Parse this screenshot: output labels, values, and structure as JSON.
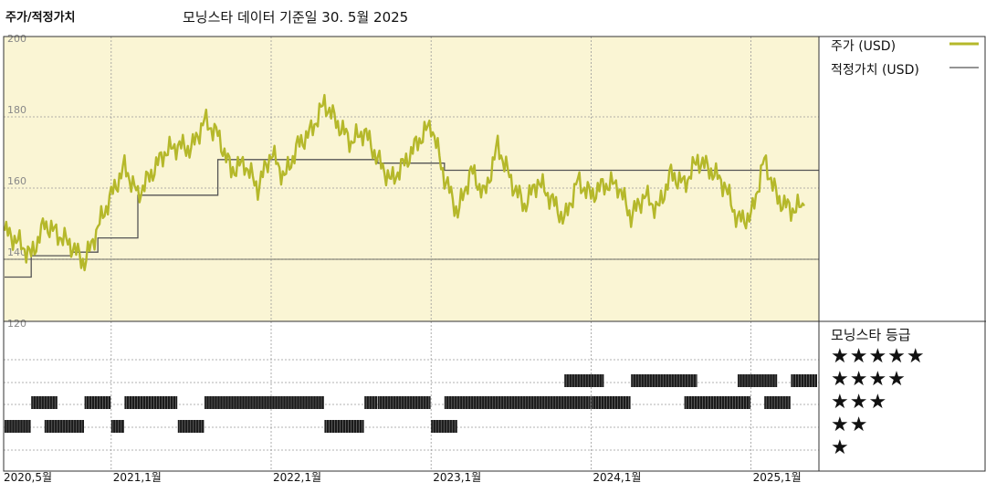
{
  "header": {
    "title": "주가/적정가치",
    "subtitle": "모닝스타 데이터 기준일 30. 5월 2025"
  },
  "legend": {
    "price_label": "주가 (USD)",
    "fair_value_label": "적정가치 (USD)",
    "rating_title": "모닝스타 등급"
  },
  "colors": {
    "price_line": "#b5b82a",
    "fair_value_line": "#555555",
    "panel_bg": "#faf5d4",
    "rating_bar": "#1a1a1a"
  },
  "chart_data": {
    "type": "line",
    "x_tick_labels": [
      "2020,5월",
      "2021,1월",
      "2022,1월",
      "2023,1월",
      "2024,1월",
      "2025,1월"
    ],
    "x_ticks": [
      "2020-05",
      "2021-01",
      "2022-01",
      "2023-01",
      "2024-01",
      "2025-01"
    ],
    "y_tick_labels": [
      "200",
      "180",
      "160",
      "140",
      "120"
    ],
    "ylim": [
      120,
      200
    ],
    "grid": true,
    "legend_position": "right",
    "series": [
      {
        "name": "주가 (USD)",
        "x": [
          "2020-05",
          "2020-06",
          "2020-07",
          "2020-08",
          "2020-09",
          "2020-10",
          "2020-11",
          "2020-12",
          "2021-01",
          "2021-02",
          "2021-03",
          "2021-04",
          "2021-05",
          "2021-06",
          "2021-07",
          "2021-08",
          "2021-09",
          "2021-10",
          "2021-11",
          "2021-12",
          "2022-01",
          "2022-02",
          "2022-03",
          "2022-04",
          "2022-05",
          "2022-06",
          "2022-07",
          "2022-08",
          "2022-09",
          "2022-10",
          "2022-11",
          "2022-12",
          "2023-01",
          "2023-02",
          "2023-03",
          "2023-04",
          "2023-05",
          "2023-06",
          "2023-07",
          "2023-08",
          "2023-09",
          "2023-10",
          "2023-11",
          "2023-12",
          "2024-01",
          "2024-02",
          "2024-03",
          "2024-04",
          "2024-05",
          "2024-06",
          "2024-07",
          "2024-08",
          "2024-09",
          "2024-10",
          "2024-11",
          "2024-12",
          "2025-01",
          "2025-02",
          "2025-03",
          "2025-04",
          "2025-05"
        ],
        "values": [
          148,
          145,
          141,
          150,
          147,
          144,
          139,
          149,
          158,
          166,
          158,
          164,
          170,
          172,
          171,
          179,
          175,
          165,
          167,
          160,
          170,
          163,
          172,
          176,
          184,
          178,
          173,
          176,
          168,
          162,
          167,
          173,
          178,
          163,
          153,
          165,
          158,
          172,
          162,
          155,
          162,
          157,
          151,
          162,
          158,
          161,
          161,
          152,
          158,
          154,
          164,
          161,
          168,
          165,
          161,
          151,
          152,
          168,
          157,
          154,
          155
        ]
      },
      {
        "name": "적정가치 (USD)",
        "x": [
          "2020-05",
          "2020-07",
          "2020-10",
          "2020-12",
          "2021-03",
          "2021-06",
          "2021-09",
          "2022-02",
          "2022-09",
          "2023-02",
          "2024-03",
          "2025-05"
        ],
        "values": [
          135,
          141,
          142,
          146,
          158,
          158,
          168,
          168,
          167,
          165,
          165,
          165
        ]
      }
    ],
    "ratings": {
      "levels": [
        "★★★★★",
        "★★★★",
        "★★★",
        "★★",
        "★"
      ],
      "periods": [
        {
          "from": "2020-05",
          "to": "2020-06",
          "stars": 2
        },
        {
          "from": "2020-07",
          "to": "2020-08",
          "stars": 3
        },
        {
          "from": "2020-08",
          "to": "2020-10",
          "stars": 2
        },
        {
          "from": "2020-11",
          "to": "2020-12",
          "stars": 3
        },
        {
          "from": "2021-01",
          "to": "2021-01",
          "stars": 2
        },
        {
          "from": "2021-02",
          "to": "2021-05",
          "stars": 3
        },
        {
          "from": "2021-06",
          "to": "2021-07",
          "stars": 2
        },
        {
          "from": "2021-08",
          "to": "2022-04",
          "stars": 3
        },
        {
          "from": "2022-05",
          "to": "2022-07",
          "stars": 2
        },
        {
          "from": "2022-08",
          "to": "2022-08",
          "stars": 3
        },
        {
          "from": "2022-09",
          "to": "2022-12",
          "stars": 3
        },
        {
          "from": "2023-01",
          "to": "2023-02",
          "stars": 2
        },
        {
          "from": "2023-02",
          "to": "2023-12",
          "stars": 3
        },
        {
          "from": "2023-11",
          "to": "2024-01",
          "stars": 4
        },
        {
          "from": "2024-01",
          "to": "2024-03",
          "stars": 3
        },
        {
          "from": "2024-04",
          "to": "2024-08",
          "stars": 4
        },
        {
          "from": "2024-08",
          "to": "2024-12",
          "stars": 3
        },
        {
          "from": "2024-12",
          "to": "2025-02",
          "stars": 4
        },
        {
          "from": "2025-02",
          "to": "2025-03",
          "stars": 3
        },
        {
          "from": "2025-04",
          "to": "2025-05",
          "stars": 4
        }
      ]
    }
  }
}
